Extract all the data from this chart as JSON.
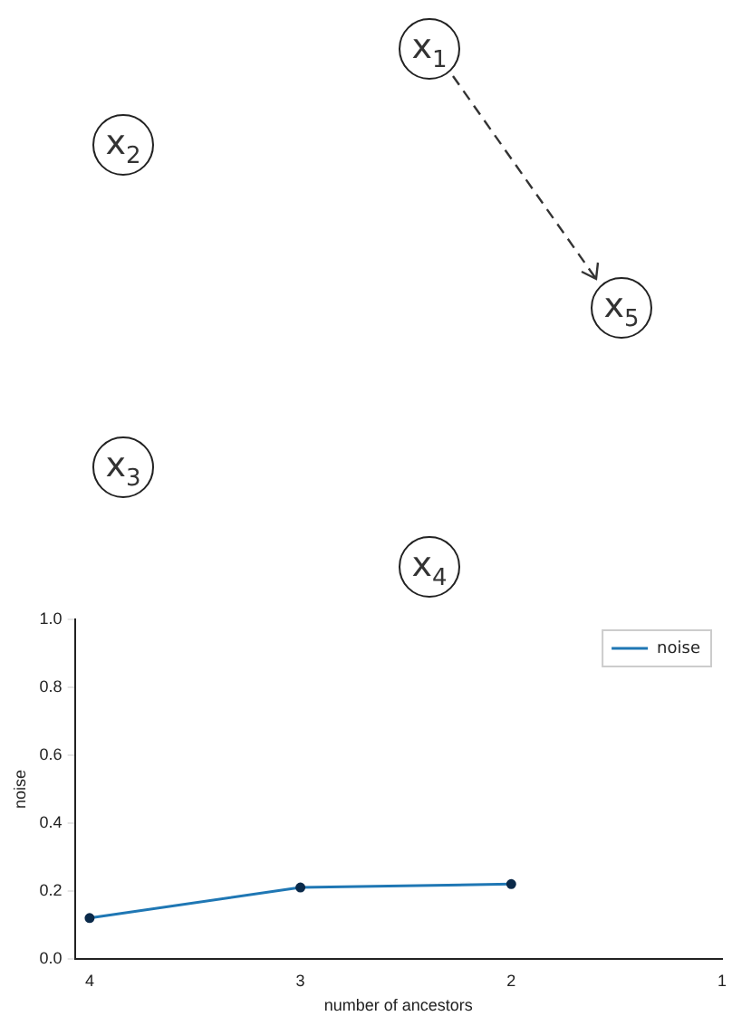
{
  "chart_data": {
    "type": "line",
    "xlabel": "number of ancestors",
    "ylabel": "noise",
    "x": [
      4,
      3,
      2
    ],
    "series": [
      {
        "name": "noise",
        "color": "#1f77b4",
        "values": [
          0.12,
          0.21,
          0.22
        ]
      }
    ],
    "xlim": [
      4.07,
      1
    ],
    "xticks": [
      4,
      3,
      2,
      1
    ],
    "ylim": [
      0,
      1
    ],
    "yticks": [
      {
        "value": 0,
        "label": "0.0"
      },
      {
        "value": 0.2,
        "label": "0.2"
      },
      {
        "value": 0.4,
        "label": "0.4"
      },
      {
        "value": 0.6,
        "label": "0.6"
      },
      {
        "value": 0.8,
        "label": "0.8"
      },
      {
        "value": 1,
        "label": "1.0"
      }
    ],
    "marker": "circle",
    "legend": "top right",
    "annotations": [
      "x$_{1}$",
      "x$_{2}$",
      "x$_{5}$",
      "x$_{3}$",
      "x$_{4}$"
    ]
  }
}
